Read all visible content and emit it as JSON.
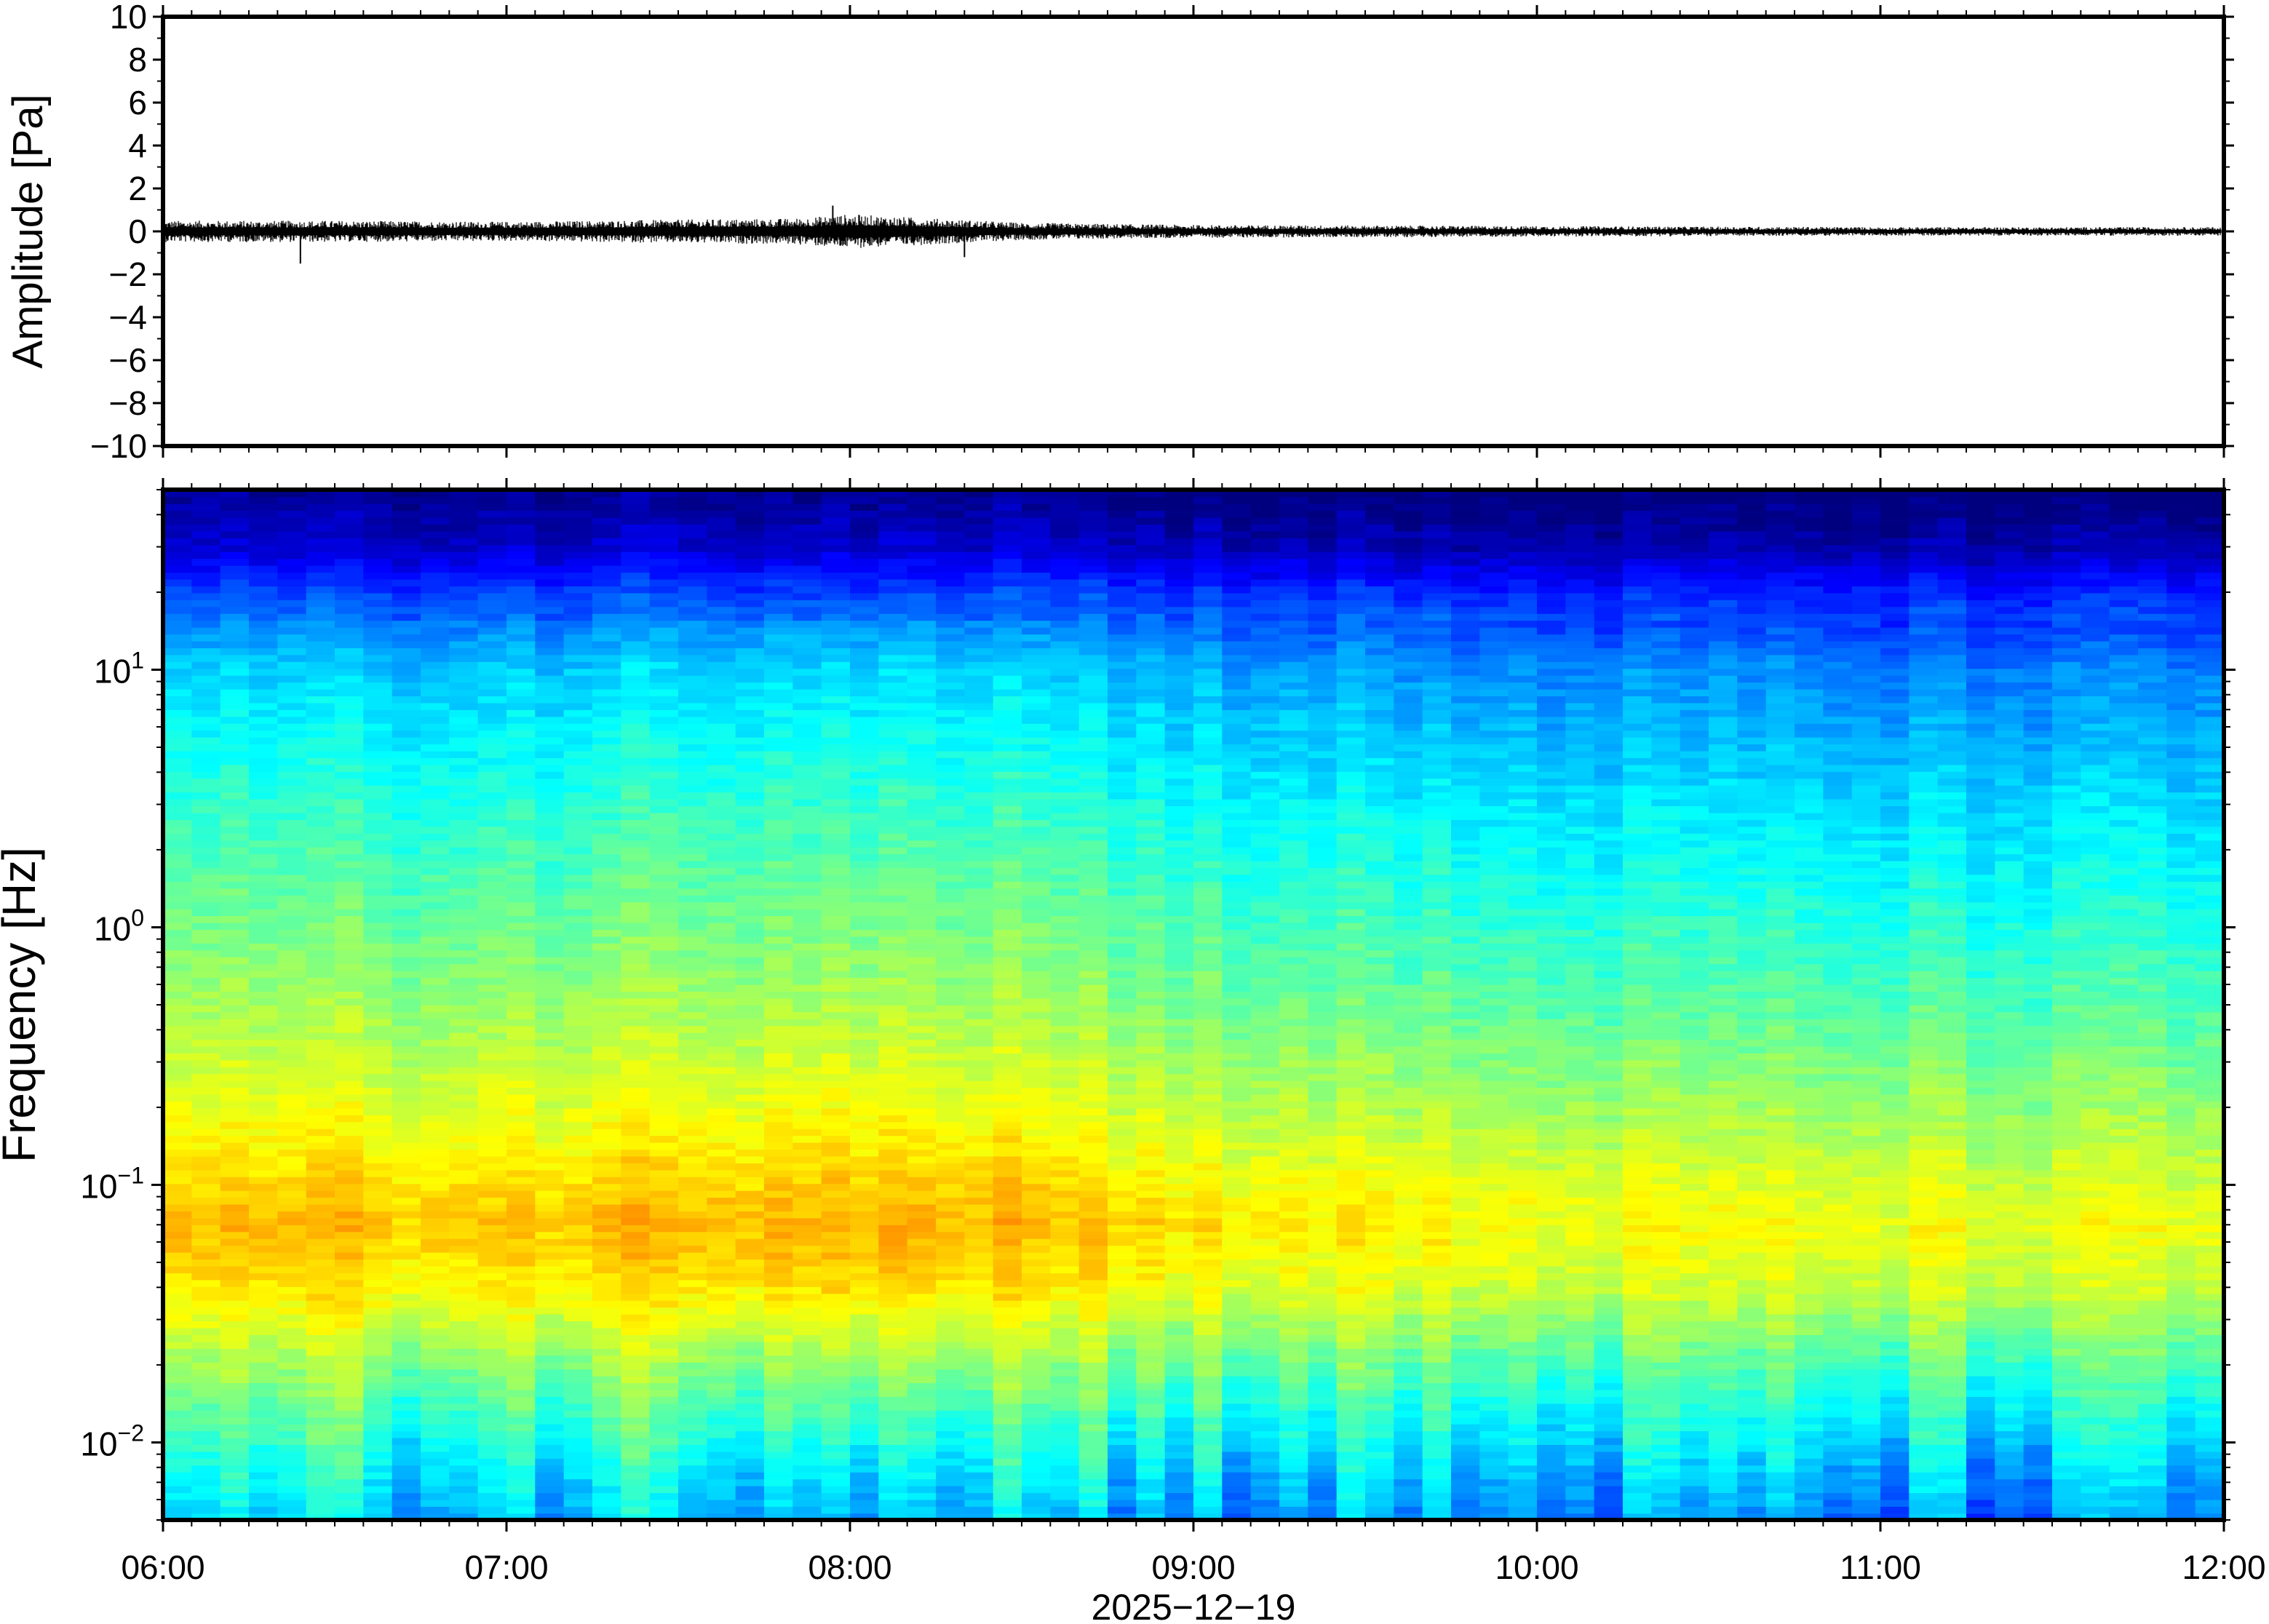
{
  "chart_data": [
    {
      "type": "line",
      "ylabel": "Amplitude [Pa]",
      "ylim": [
        -10,
        10
      ],
      "yticks": [
        10,
        8,
        6,
        4,
        2,
        0,
        -2,
        -4,
        -6,
        -8,
        -10
      ],
      "ytick_labels": [
        "10",
        "8",
        "6",
        "4",
        "2",
        "0",
        "−2",
        "−4",
        "−6",
        "−8",
        "−10"
      ],
      "xlim": [
        "06:00",
        "12:00"
      ],
      "grid": false,
      "color": "#000000",
      "envelope": {
        "time": [
          "06:00",
          "06:30",
          "07:00",
          "07:30",
          "07:50",
          "08:00",
          "08:15",
          "08:30",
          "09:00",
          "10:00",
          "11:00",
          "12:00"
        ],
        "half_range_pa": [
          0.5,
          0.5,
          0.45,
          0.55,
          0.6,
          0.8,
          0.6,
          0.4,
          0.3,
          0.25,
          0.2,
          0.2
        ]
      },
      "spikes": [
        {
          "time": "06:24",
          "min_pa": -1.5
        },
        {
          "time": "07:57",
          "max_pa": 1.2
        },
        {
          "time": "08:20",
          "min_pa": -1.2
        }
      ]
    },
    {
      "type": "heatmap",
      "ylabel": "Frequency [Hz]",
      "xlabel": "2025−12−19",
      "yscale": "log",
      "ylim": [
        0.005,
        50
      ],
      "yticks": [
        0.01,
        0.1,
        1,
        10
      ],
      "ytick_labels": [
        {
          "base": "10",
          "exp": "−2"
        },
        {
          "base": "10",
          "exp": "−1"
        },
        {
          "base": "10",
          "exp": "0"
        },
        {
          "base": "10",
          "exp": "1"
        }
      ],
      "x_ticks": [
        "06:00",
        "07:00",
        "08:00",
        "09:00",
        "10:00",
        "11:00",
        "12:00"
      ],
      "xlim": [
        "06:00",
        "12:00"
      ],
      "colormap": "jet",
      "colormap_stops": [
        "#00007f",
        "#0000ff",
        "#0080ff",
        "#00ffff",
        "#80ff80",
        "#ffff00",
        "#ff8000",
        "#ff0000"
      ],
      "relative_power_profile": {
        "frequency_hz": [
          0.005,
          0.008,
          0.012,
          0.02,
          0.04,
          0.07,
          0.1,
          0.2,
          0.5,
          1,
          3,
          10,
          20,
          30,
          50
        ],
        "level": [
          0.33,
          0.4,
          0.47,
          0.56,
          0.7,
          0.75,
          0.72,
          0.65,
          0.57,
          0.52,
          0.44,
          0.34,
          0.2,
          0.07,
          0.0
        ]
      },
      "temporal_trend": {
        "time": [
          "06:00",
          "07:00",
          "07:30",
          "08:00",
          "08:30",
          "09:00",
          "10:00",
          "11:00",
          "12:00"
        ],
        "level_offset": [
          0.04,
          0.03,
          0.05,
          0.07,
          0.05,
          0.0,
          -0.04,
          -0.05,
          -0.06
        ]
      }
    }
  ]
}
